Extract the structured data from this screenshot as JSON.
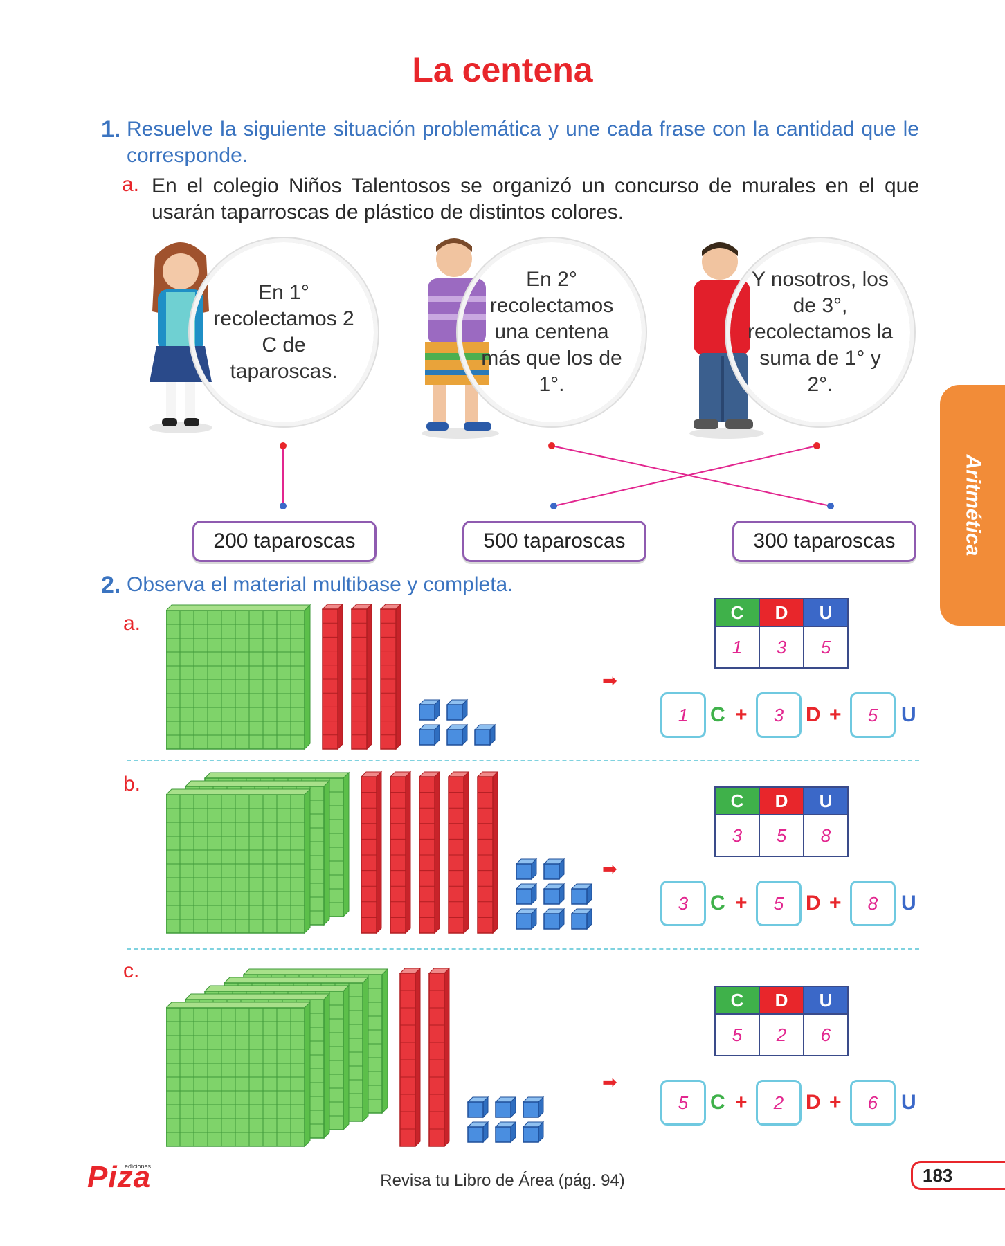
{
  "title": "La centena",
  "q1": {
    "number": "1.",
    "text": "Resuelve la siguiente situación problemática y une cada frase con la cantidad que le corresponde.",
    "sub_letter": "a.",
    "sub_text": "En el colegio Niños Talentosos se organizó un concurso de murales en el que usarán taparroscas de plástico de distintos colores.",
    "bubbles": [
      {
        "text": "En 1° recolectamos 2 C de taparoscas.",
        "color": "#dccbe9"
      },
      {
        "text": "En 2° recolectamos una centena más que los de 1°.",
        "color": "#cfeaaa"
      },
      {
        "text": "Y nosotros, los de 3°, recolectamos la suma de 1° y 2°.",
        "color": "#c6e9f5"
      }
    ],
    "answers": [
      "200 taparoscas",
      "500 taparoscas",
      "300 taparoscas"
    ],
    "line_color": "#e2268f"
  },
  "q2": {
    "number": "2.",
    "text": "Observa el material multibase y completa.",
    "headers": [
      "C",
      "D",
      "U"
    ],
    "items": [
      {
        "letter": "a.",
        "c": "1",
        "d": "3",
        "u": "5",
        "blocks": {
          "hundreds": 1,
          "tens": 3,
          "units": 5
        }
      },
      {
        "letter": "b.",
        "c": "3",
        "d": "5",
        "u": "8",
        "blocks": {
          "hundreds": 3,
          "tens": 5,
          "units": 8
        }
      },
      {
        "letter": "c.",
        "c": "5",
        "d": "2",
        "u": "6",
        "blocks": {
          "hundreds": 5,
          "tens": 2,
          "units": 6
        }
      }
    ],
    "eq": {
      "c": "C",
      "d": "D",
      "u": "U",
      "plus": "+"
    }
  },
  "side_tab": "Aritmética",
  "footer": "Revisa tu Libro de Área (pág. 94)",
  "page_number": "183",
  "logo": {
    "text": "Piza",
    "small": "ediciones"
  },
  "colors": {
    "green": "#3fb14a",
    "red": "#e8262b",
    "blue": "#3b68c8",
    "tab": "#f28c38"
  }
}
